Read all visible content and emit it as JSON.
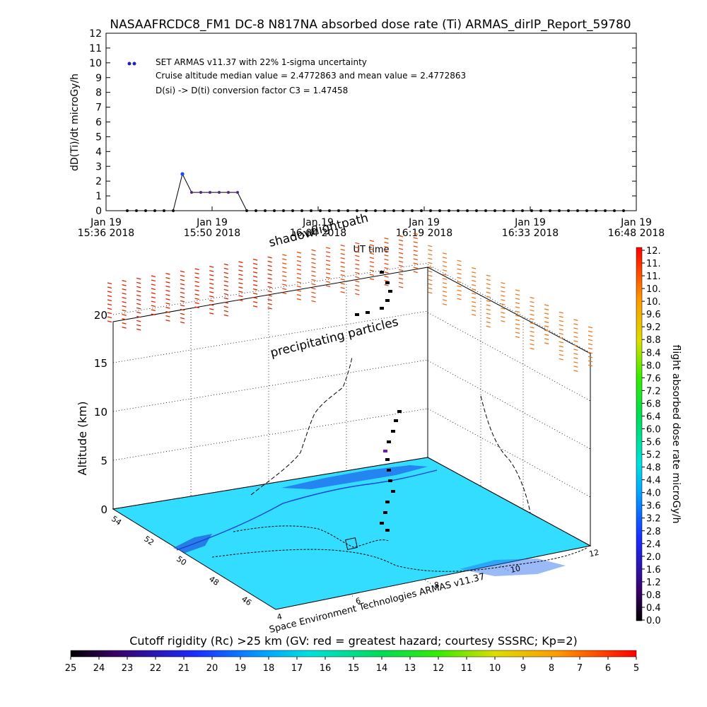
{
  "title": "NASAAFRCDC8_FM1 DC-8   N817NA absorbed dose rate (Ti) ARMAS_dirIP_Report_59780",
  "chart_data": [
    {
      "type": "line",
      "ylabel": "dD(Ti)/dt microGy/h",
      "xlabel": "UT time",
      "ylim": [
        0,
        12
      ],
      "yticks": [
        "0",
        "1",
        "2",
        "3",
        "4",
        "5",
        "6",
        "7",
        "8",
        "9",
        "10",
        "11",
        "12"
      ],
      "xticks": [
        {
          "line1": "Jan 19",
          "line2": "15:36 2018"
        },
        {
          "line1": "Jan 19",
          "line2": "15:50 2018"
        },
        {
          "line1": "Jan 19",
          "line2": "16:04 2018"
        },
        {
          "line1": "Jan 19",
          "line2": "16:19 2018"
        },
        {
          "line1": "Jan 19",
          "line2": "16:33 2018"
        },
        {
          "line1": "Jan 19",
          "line2": "16:48 2018"
        }
      ],
      "legend": {
        "position": "top-left",
        "lines": [
          "SET ARMAS v11.37 with 22% 1-sigma uncertainty",
          "Cruise altitude median value = 2.4772863 and mean value = 2.4772863",
          "D(si) -> D(ti) conversion factor C3 = 1.47458"
        ]
      },
      "series": [
        {
          "x_minutes": [
            0,
            1.3,
            2.6,
            3.9,
            5.2,
            6.5,
            7.8,
            9.1,
            10.4,
            11.7,
            13.0,
            14.3,
            15.6,
            16.9,
            18.2,
            19.5,
            20.8,
            22.1,
            23.4,
            24.7,
            26.0,
            27.3,
            28.6,
            29.9,
            31.2,
            32.5,
            33.8,
            35.1,
            36.4,
            37.7,
            39.0,
            40.3,
            41.6,
            42.9,
            44.2,
            45.5,
            46.8,
            48.1,
            49.4,
            50.7,
            52.0,
            53.3,
            54.6,
            55.9,
            57.2,
            58.5,
            59.8,
            61.1,
            62.4,
            63.7,
            65.0,
            66.3,
            67.6,
            68.9,
            70.2
          ],
          "values": [
            0,
            0,
            0,
            0,
            0,
            0,
            2.48,
            1.24,
            1.24,
            1.24,
            1.24,
            1.24,
            1.24,
            0,
            0,
            0,
            0,
            0,
            0,
            0,
            0,
            0,
            0,
            0,
            0,
            0,
            0,
            0,
            0,
            0,
            0,
            0,
            0,
            0,
            0,
            0,
            0,
            0,
            0,
            0,
            0,
            0,
            0,
            0,
            0,
            0,
            0,
            0,
            0,
            0,
            0,
            0,
            0,
            0,
            0
          ]
        }
      ]
    },
    {
      "type": "scatter",
      "ylabel": "Altitude (km)",
      "zticks": [
        "0",
        "5",
        "10",
        "15",
        "20"
      ],
      "lat_ticks": [
        "54",
        "52",
        "50",
        "48",
        "46"
      ],
      "lon_ticks": [
        "4",
        "6",
        "8",
        "10",
        "12"
      ],
      "annotations": [
        "shadow",
        "flightpath",
        "precipitating particles"
      ],
      "credit": "Space Environment Technologies ARMAS v11.37",
      "colorbar": {
        "label": "flight absorbed dose rate microGy/h",
        "ticks": [
          "12.",
          "11.",
          "11.",
          "10.",
          "10.",
          "9.6",
          "9.2",
          "8.8",
          "8.4",
          "8.0",
          "7.6",
          "7.2",
          "6.8",
          "6.4",
          "6.0",
          "5.6",
          "5.2",
          "4.8",
          "4.4",
          "4.0",
          "3.6",
          "3.2",
          "2.8",
          "2.4",
          "2.0",
          "1.6",
          "1.2",
          "0.8",
          "0.4",
          "0.0"
        ]
      },
      "cutoff_bar": {
        "title": "Cutoff rigidity (Rc) >25 km (GV: red = greatest hazard; courtesy SSSRC; Kp=2)",
        "ticks": [
          "25",
          "24",
          "23",
          "22",
          "21",
          "20",
          "19",
          "18",
          "17",
          "16",
          "15",
          "14",
          "13",
          "12",
          "11",
          "10",
          "9",
          "8",
          "7",
          "6",
          "5"
        ]
      }
    }
  ],
  "colors": {
    "map_fill": "#33ddff",
    "coast": "#1a3fd8",
    "line_point": "#2222bb",
    "particle_red": "#dd2200",
    "particle_orange": "#ee6611"
  }
}
